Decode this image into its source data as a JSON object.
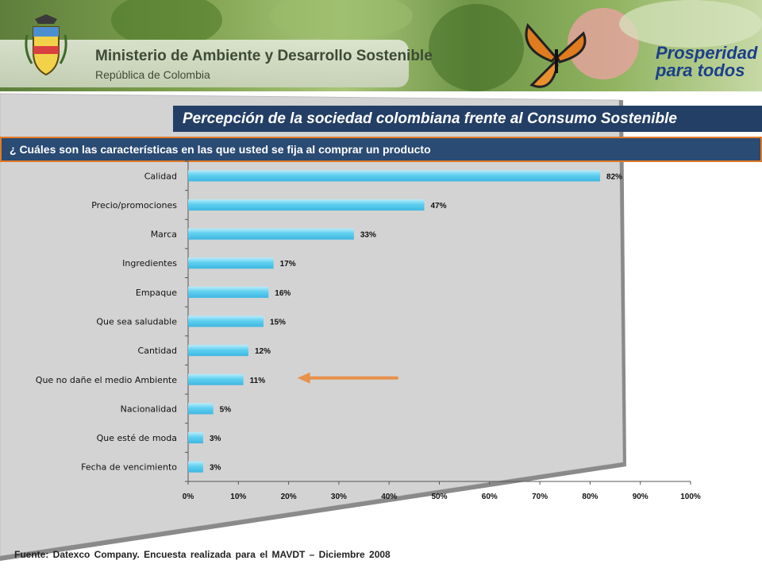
{
  "header": {
    "ministry": "Ministerio de Ambiente y Desarrollo Sostenible",
    "republic": "República de Colombia",
    "slogan_line1": "Prosperidad",
    "slogan_line2": "para todos",
    "logo_icon": "colombia-coat-of-arms-icon",
    "butterfly_icon": "butterfly-icon"
  },
  "title": "Percepción de la sociedad colombiana frente al Consumo Sostenible",
  "question": "¿ Cuáles son las características en las que usted se fija al comprar un producto",
  "chart_data": {
    "type": "bar",
    "orientation": "horizontal",
    "categories": [
      "Calidad",
      "Precio/promociones",
      "Marca",
      "Ingredientes",
      "Empaque",
      "Que sea saludable",
      "Cantidad",
      "Que no dañe el medio Ambiente",
      "Nacionalidad",
      "Que esté de moda",
      "Fecha de vencimiento"
    ],
    "values": [
      82,
      47,
      33,
      17,
      16,
      15,
      12,
      11,
      5,
      3,
      3
    ],
    "value_labels": [
      "82%",
      "47%",
      "33%",
      "17%",
      "16%",
      "15%",
      "12%",
      "11%",
      "5%",
      "3%",
      "3%"
    ],
    "xlim": [
      0,
      100
    ],
    "xticks": [
      "0%",
      "10%",
      "20%",
      "30%",
      "40%",
      "50%",
      "60%",
      "70%",
      "80%",
      "90%",
      "100%"
    ],
    "highlight_category": "Que no dañe el medio Ambiente",
    "bar_color": "#5fd0f0",
    "arrow_color": "#e8914a",
    "grid": false,
    "legend": "none"
  },
  "source": "Fuente: Datexco Company. Encuesta realizada para el MAVDT – Diciembre 2008",
  "colors": {
    "title_bg": "#243f66",
    "question_bg": "#2a4b73",
    "question_border": "#e07b28",
    "panel": "#d4d4d4"
  }
}
